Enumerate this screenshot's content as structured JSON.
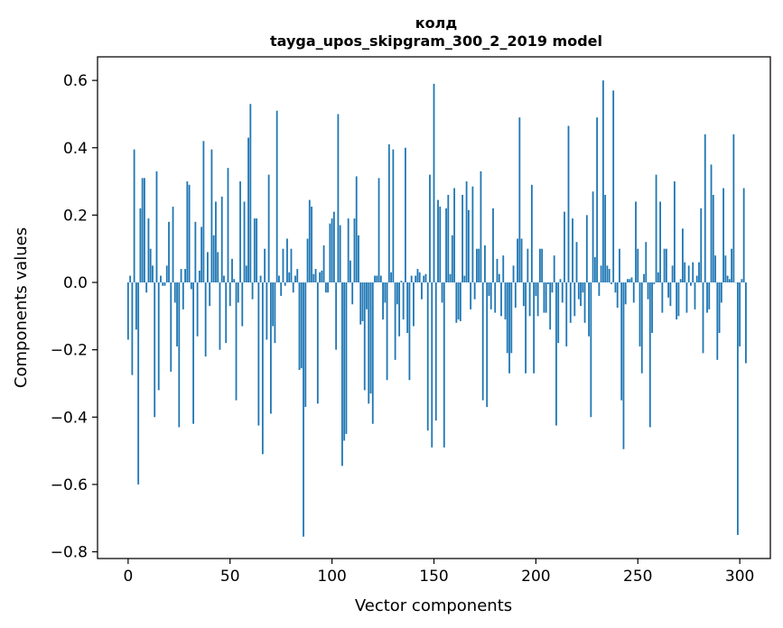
{
  "chart_data": {
    "type": "bar",
    "title": "колд",
    "subtitle": "tayga_upos_skipgram_300_2_2019 model",
    "xlabel": "Vector components",
    "ylabel": "Components values",
    "xlim": [
      -15,
      315
    ],
    "ylim": [
      -0.82,
      0.67
    ],
    "xticks": [
      0,
      50,
      100,
      150,
      200,
      250,
      300
    ],
    "yticks": [
      -0.8,
      -0.6,
      -0.4,
      -0.2,
      0.0,
      0.2,
      0.4,
      0.6
    ],
    "ytick_labels": [
      "−0.8",
      "−0.6",
      "−0.4",
      "−0.2",
      "0.0",
      "0.2",
      "0.4",
      "0.6"
    ],
    "grid": false,
    "bar_color": "#1f77b4",
    "values": [
      -0.17,
      0.02,
      -0.275,
      0.395,
      -0.14,
      -0.6,
      0.22,
      0.31,
      0.31,
      -0.03,
      0.19,
      0.1,
      0.05,
      -0.4,
      0.33,
      -0.32,
      0.02,
      -0.01,
      -0.01,
      0.05,
      0.18,
      -0.265,
      0.225,
      -0.06,
      -0.19,
      -0.43,
      0.04,
      -0.08,
      0.04,
      0.3,
      0.29,
      -0.02,
      -0.42,
      0.18,
      -0.16,
      0.035,
      0.165,
      0.42,
      -0.22,
      0.09,
      -0.07,
      0.395,
      0.14,
      0.24,
      0.09,
      -0.2,
      0.255,
      0.02,
      -0.18,
      0.34,
      -0.07,
      0.07,
      0.01,
      -0.35,
      -0.06,
      0.3,
      -0.13,
      0.24,
      0.05,
      0.43,
      0.53,
      -0.05,
      0.19,
      0.19,
      -0.425,
      0.02,
      -0.51,
      0.1,
      -0.17,
      0.32,
      -0.39,
      -0.13,
      -0.18,
      0.51,
      0.02,
      -0.04,
      0.1,
      -0.01,
      0.13,
      0.03,
      0.1,
      -0.03,
      0.02,
      0.04,
      -0.26,
      -0.255,
      -0.755,
      -0.37,
      0.13,
      0.245,
      0.225,
      0.025,
      0.04,
      -0.36,
      0.03,
      0.035,
      0.11,
      -0.03,
      -0.03,
      0.175,
      0.19,
      0.21,
      -0.2,
      0.5,
      0.17,
      -0.545,
      -0.47,
      -0.45,
      0.19,
      0.065,
      -0.065,
      0.19,
      0.315,
      0.14,
      -0.125,
      -0.115,
      -0.32,
      -0.08,
      -0.36,
      -0.33,
      -0.42,
      0.02,
      0.02,
      0.31,
      0.02,
      -0.11,
      -0.06,
      -0.29,
      0.41,
      0.03,
      0.395,
      -0.23,
      -0.065,
      -0.16,
      0.005,
      -0.11,
      0.4,
      -0.15,
      -0.29,
      0.02,
      -0.13,
      0.02,
      0.04,
      0.03,
      -0.05,
      0.02,
      0.025,
      -0.44,
      0.32,
      -0.49,
      0.59,
      -0.41,
      0.245,
      0.225,
      -0.06,
      -0.49,
      0.22,
      0.26,
      0.025,
      0.14,
      0.28,
      -0.12,
      -0.11,
      -0.115,
      0.26,
      0.02,
      0.3,
      0.215,
      -0.08,
      0.285,
      -0.05,
      0.1,
      0.1,
      0.33,
      -0.35,
      0.11,
      -0.37,
      -0.04,
      -0.08,
      0.22,
      -0.09,
      0.07,
      0.025,
      -0.1,
      0.08,
      -0.11,
      -0.21,
      -0.27,
      -0.21,
      0.05,
      -0.075,
      0.13,
      0.49,
      0.13,
      -0.07,
      -0.27,
      0.1,
      -0.1,
      0.29,
      -0.27,
      -0.04,
      -0.1,
      0.1,
      0.1,
      -0.09,
      -0.09,
      -0.005,
      -0.14,
      -0.03,
      0.08,
      -0.425,
      -0.18,
      0.01,
      -0.06,
      0.21,
      -0.19,
      0.465,
      -0.12,
      0.19,
      -0.1,
      0.12,
      -0.05,
      -0.07,
      -0.03,
      -0.12,
      0.2,
      -0.16,
      -0.4,
      0.27,
      0.075,
      0.49,
      -0.04,
      0.05,
      0.6,
      0.26,
      0.05,
      0.04,
      -0.005,
      0.57,
      -0.03,
      -0.075,
      0.1,
      -0.35,
      -0.495,
      -0.065,
      0.01,
      0.01,
      0.015,
      -0.06,
      0.24,
      0.1,
      -0.19,
      -0.27,
      0.025,
      0.12,
      -0.05,
      -0.43,
      -0.15,
      -0.005,
      0.32,
      0.03,
      0.24,
      -0.09,
      0.1,
      0.1,
      -0.045,
      -0.07,
      0.05,
      0.3,
      -0.11,
      -0.1,
      0.01,
      0.16,
      0.06,
      -0.09,
      0.05,
      -0.01,
      0.06,
      -0.08,
      0.02,
      0.06,
      0.22,
      -0.21,
      0.44,
      -0.09,
      -0.08,
      0.35,
      0.26,
      0.08,
      -0.23,
      -0.15,
      -0.06,
      0.28,
      0.08,
      0.02,
      0.01,
      0.1,
      0.44,
      0.0,
      -0.75,
      -0.19,
      0.01,
      0.28,
      -0.24
    ]
  }
}
